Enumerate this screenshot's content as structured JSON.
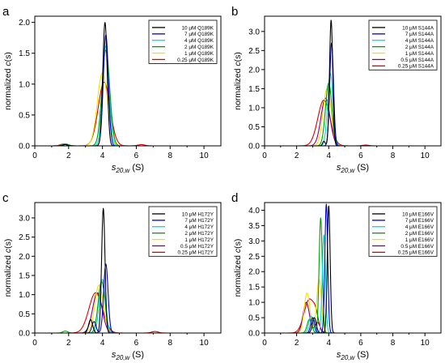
{
  "figure": {
    "panels": [
      "a",
      "b",
      "c",
      "d"
    ]
  },
  "chart_data": [
    {
      "panel": "a",
      "type": "line",
      "xlabel": "s20,w (S)",
      "ylabel": "normalized c(s)",
      "xlim": [
        0,
        11
      ],
      "ylim": [
        0,
        2.1
      ],
      "xticks": [
        0,
        2,
        4,
        6,
        8,
        10
      ],
      "yticks": [
        0,
        0.5,
        1.0,
        1.5,
        2.0
      ],
      "ytick_labels": [
        "0.0",
        "0.5",
        "1.0",
        "1.5",
        "2.0"
      ],
      "legend_placement": "top-right",
      "series": [
        {
          "name": "10 μM Q189K",
          "color": "#000000",
          "peaks": [
            {
              "x": 4.15,
              "h": 2.0,
              "w": 0.13
            },
            {
              "x": 1.8,
              "h": 0.02,
              "w": 0.15
            }
          ]
        },
        {
          "name": "7 μM Q189K",
          "color": "#0000cc",
          "peaks": [
            {
              "x": 4.2,
              "h": 1.8,
              "w": 0.15
            },
            {
              "x": 1.8,
              "h": 0.02,
              "w": 0.15
            }
          ]
        },
        {
          "name": "4 μM Q189K",
          "color": "#00d8d8",
          "peaks": [
            {
              "x": 4.2,
              "h": 1.62,
              "w": 0.19
            },
            {
              "x": 1.8,
              "h": 0.02,
              "w": 0.18
            }
          ]
        },
        {
          "name": "2 μM Q189K",
          "color": "#00a000",
          "peaks": [
            {
              "x": 4.2,
              "h": 1.55,
              "w": 0.23
            },
            {
              "x": 1.8,
              "h": 0.03,
              "w": 0.2
            }
          ]
        },
        {
          "name": "1 μM Q189K",
          "color": "#f0e000",
          "peaks": [
            {
              "x": 4.0,
              "h": 1.18,
              "w": 0.3
            },
            {
              "x": 1.8,
              "h": 0.03,
              "w": 0.2
            }
          ]
        },
        {
          "name": "0.25 μM Q189K",
          "color": "#e00000",
          "peaks": [
            {
              "x": 4.1,
              "h": 1.03,
              "w": 0.35
            },
            {
              "x": 1.7,
              "h": 0.03,
              "w": 0.2
            },
            {
              "x": 6.3,
              "h": 0.02,
              "w": 0.2
            }
          ]
        }
      ]
    },
    {
      "panel": "b",
      "type": "line",
      "xlabel": "s20,w (S)",
      "ylabel": "normalized c(s)",
      "xlim": [
        0,
        11
      ],
      "ylim": [
        0,
        3.4
      ],
      "xticks": [
        0,
        2,
        4,
        6,
        8,
        10
      ],
      "yticks": [
        0,
        0.5,
        1.0,
        1.5,
        2.0,
        2.5,
        3.0
      ],
      "ytick_labels": [
        "0.0",
        "0.5",
        "1.0",
        "1.5",
        "2.0",
        "2.5",
        "3.0"
      ],
      "legend_placement": "top-right",
      "series": [
        {
          "name": "10 μM S144A",
          "color": "#000000",
          "peaks": [
            {
              "x": 4.15,
              "h": 3.3,
              "w": 0.1
            },
            {
              "x": 3.7,
              "h": 0.12,
              "w": 0.08
            }
          ]
        },
        {
          "name": "7 μM S144A",
          "color": "#0000cc",
          "peaks": [
            {
              "x": 4.18,
              "h": 2.7,
              "w": 0.12
            }
          ]
        },
        {
          "name": "4 μM S144A",
          "color": "#00d8d8",
          "peaks": [
            {
              "x": 4.1,
              "h": 1.9,
              "w": 0.17
            }
          ]
        },
        {
          "name": "2 μM S144A",
          "color": "#00a000",
          "peaks": [
            {
              "x": 4.0,
              "h": 1.65,
              "w": 0.2
            }
          ]
        },
        {
          "name": "1 μM S144A",
          "color": "#f0e000",
          "peaks": [
            {
              "x": 3.9,
              "h": 1.5,
              "w": 0.25
            }
          ]
        },
        {
          "name": "0.5 μM S144A",
          "color": "#800080",
          "peaks": [
            {
              "x": 3.8,
              "h": 1.25,
              "w": 0.28
            }
          ]
        },
        {
          "name": "0.25 μM S144A",
          "color": "#e00000",
          "peaks": [
            {
              "x": 3.7,
              "h": 1.2,
              "w": 0.38
            },
            {
              "x": 6.3,
              "h": 0.02,
              "w": 0.2
            }
          ]
        }
      ]
    },
    {
      "panel": "c",
      "type": "line",
      "xlabel": "s20,w (S)",
      "ylabel": "normalized c(s)",
      "xlim": [
        0,
        11
      ],
      "ylim": [
        0,
        3.4
      ],
      "xticks": [
        0,
        2,
        4,
        6,
        8,
        10
      ],
      "yticks": [
        0,
        0.5,
        1.0,
        1.5,
        2.0,
        2.5,
        3.0
      ],
      "ytick_labels": [
        "0.0",
        "0.5",
        "1.0",
        "1.5",
        "2.0",
        "2.5",
        "3.0"
      ],
      "legend_placement": "top-right",
      "series": [
        {
          "name": "10 μM H172Y",
          "color": "#000000",
          "peaks": [
            {
              "x": 4.05,
              "h": 3.25,
              "w": 0.1
            },
            {
              "x": 3.3,
              "h": 0.35,
              "w": 0.12
            }
          ]
        },
        {
          "name": "7 μM H172Y",
          "color": "#0000cc",
          "peaks": [
            {
              "x": 4.2,
              "h": 1.8,
              "w": 0.13
            },
            {
              "x": 3.5,
              "h": 0.3,
              "w": 0.12
            }
          ]
        },
        {
          "name": "4 μM H172Y",
          "color": "#00d8d8",
          "peaks": [
            {
              "x": 4.0,
              "h": 1.4,
              "w": 0.18
            }
          ]
        },
        {
          "name": "2 μM H172Y",
          "color": "#00a000",
          "peaks": [
            {
              "x": 3.95,
              "h": 1.35,
              "w": 0.2
            },
            {
              "x": 1.8,
              "h": 0.05,
              "w": 0.15
            }
          ]
        },
        {
          "name": "1 μM H172Y",
          "color": "#f0e000",
          "peaks": [
            {
              "x": 3.8,
              "h": 1.25,
              "w": 0.25
            }
          ]
        },
        {
          "name": "0.5 μM H172Y",
          "color": "#800080",
          "peaks": [
            {
              "x": 3.7,
              "h": 1.05,
              "w": 0.28
            }
          ]
        },
        {
          "name": "0.25 μM H172Y",
          "color": "#e00000",
          "peaks": [
            {
              "x": 3.6,
              "h": 1.05,
              "w": 0.4
            },
            {
              "x": 7.1,
              "h": 0.04,
              "w": 0.2
            }
          ]
        }
      ]
    },
    {
      "panel": "d",
      "type": "line",
      "xlabel": "s20,w (S)",
      "ylabel": "normalized c(s)",
      "xlim": [
        0,
        11
      ],
      "ylim": [
        0,
        4.25
      ],
      "xticks": [
        0,
        2,
        4,
        6,
        8,
        10
      ],
      "yticks": [
        0,
        0.5,
        1.0,
        1.5,
        2.0,
        2.5,
        3.0,
        3.5,
        4.0
      ],
      "ytick_labels": [
        "0.0",
        "0.5",
        "1.0",
        "1.5",
        "2.0",
        "2.5",
        "3.0",
        "3.5",
        "4.0"
      ],
      "legend_placement": "top-right",
      "series": [
        {
          "name": "10 μM E166V",
          "color": "#000000",
          "peaks": [
            {
              "x": 4.0,
              "h": 4.15,
              "w": 0.09
            },
            {
              "x": 3.1,
              "h": 0.5,
              "w": 0.12
            }
          ]
        },
        {
          "name": "7 μM E166V",
          "color": "#0000cc",
          "peaks": [
            {
              "x": 3.85,
              "h": 4.2,
              "w": 0.09
            },
            {
              "x": 3.0,
              "h": 0.5,
              "w": 0.12
            }
          ]
        },
        {
          "name": "4 μM E166V",
          "color": "#00d8d8",
          "peaks": [
            {
              "x": 3.7,
              "h": 3.2,
              "w": 0.1
            },
            {
              "x": 2.9,
              "h": 0.55,
              "w": 0.13
            }
          ]
        },
        {
          "name": "2 μM E166V",
          "color": "#00a000",
          "peaks": [
            {
              "x": 3.5,
              "h": 3.75,
              "w": 0.1
            },
            {
              "x": 2.8,
              "h": 0.45,
              "w": 0.14
            }
          ]
        },
        {
          "name": "1 μM E166V",
          "color": "#f0e000",
          "peaks": [
            {
              "x": 3.4,
              "h": 1.75,
              "w": 0.15
            },
            {
              "x": 2.65,
              "h": 1.3,
              "w": 0.18
            }
          ]
        },
        {
          "name": "0.5 μM E166V",
          "color": "#800080",
          "peaks": [
            {
              "x": 2.6,
              "h": 1.0,
              "w": 0.2
            },
            {
              "x": 3.3,
              "h": 0.35,
              "w": 0.15
            }
          ]
        },
        {
          "name": "0.25 μM E166V",
          "color": "#e00000",
          "peaks": [
            {
              "x": 2.8,
              "h": 1.1,
              "w": 0.33
            },
            {
              "x": 3.2,
              "h": 0.3,
              "w": 0.15
            }
          ]
        }
      ]
    }
  ]
}
